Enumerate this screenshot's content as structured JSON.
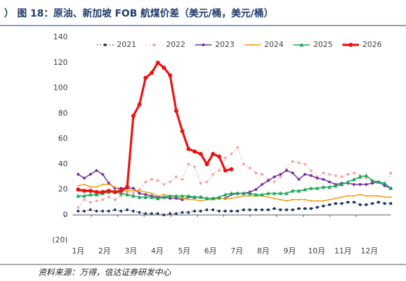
{
  "chart_data": {
    "type": "line",
    "title": "）  图 18：原油、新加坡 FOB 航煤价差（美元/桶，美元/桶）",
    "source": "资料来源：万得，信达证券研发中心",
    "x": [
      0,
      1,
      2,
      3,
      4,
      5,
      6,
      7,
      8,
      9,
      10,
      11,
      12,
      13,
      14,
      15,
      16,
      17,
      18,
      19,
      20,
      21,
      22,
      23,
      24,
      25,
      26,
      27,
      28,
      29,
      30,
      31,
      32,
      33,
      34,
      35,
      36,
      37,
      38,
      39,
      40,
      41,
      42,
      43,
      44,
      45,
      46,
      47,
      48,
      49,
      50,
      51
    ],
    "xlim": [
      0,
      51
    ],
    "xticks": [
      {
        "value": 0,
        "label": "1月"
      },
      {
        "value": 4.3,
        "label": "2月"
      },
      {
        "value": 8.6,
        "label": "3月"
      },
      {
        "value": 12.9,
        "label": "4月"
      },
      {
        "value": 17.3,
        "label": "5月"
      },
      {
        "value": 21.6,
        "label": "6月"
      },
      {
        "value": 25.9,
        "label": "7月"
      },
      {
        "value": 30.2,
        "label": "8月"
      },
      {
        "value": 34.5,
        "label": "9月"
      },
      {
        "value": 38.9,
        "label": "10月"
      },
      {
        "value": 43.2,
        "label": "11月"
      },
      {
        "value": 47.5,
        "label": "12月"
      }
    ],
    "ylim": [
      -20,
      140
    ],
    "yticks": [
      {
        "value": -20,
        "label": "(20)"
      },
      0,
      20,
      40,
      60,
      80,
      100,
      120,
      140
    ],
    "grid": false,
    "legend": "top",
    "series": [
      {
        "name": "2021",
        "color": "#1f3864",
        "line_style": "dotted",
        "marker": "circle",
        "values": [
          3,
          3,
          4,
          3,
          3,
          3,
          4,
          3,
          4,
          3,
          2,
          1,
          1,
          1,
          0,
          1,
          1,
          2,
          2,
          3,
          3,
          4,
          4,
          3,
          3,
          3,
          3,
          4,
          4,
          4,
          4,
          4,
          5,
          4,
          4,
          4,
          5,
          5,
          5,
          6,
          7,
          8,
          9,
          9,
          10,
          10,
          8,
          8,
          9,
          10,
          9,
          9
        ]
      },
      {
        "name": "2022",
        "color": "#f4a6a6",
        "line_style": "dotted",
        "marker": "circle",
        "values": [
          6,
          12,
          10,
          11,
          12,
          14,
          12,
          15,
          18,
          17,
          20,
          26,
          28,
          27,
          24,
          26,
          30,
          28,
          40,
          38,
          25,
          26,
          32,
          35,
          45,
          48,
          53,
          40,
          37,
          33,
          32,
          28,
          26,
          30,
          36,
          42,
          41,
          40,
          35,
          30,
          33,
          32,
          31,
          30,
          32,
          33,
          31,
          29,
          27,
          26,
          25,
          33
        ]
      },
      {
        "name": "2023",
        "color": "#7030a0",
        "line_style": "solid",
        "marker": "circle",
        "values": [
          32,
          29,
          32,
          35,
          32,
          25,
          21,
          21,
          21,
          21,
          17,
          16,
          15,
          14,
          14,
          13,
          13,
          12,
          14,
          14,
          14,
          13,
          13,
          13,
          13,
          16,
          17,
          17,
          18,
          20,
          24,
          27,
          30,
          32,
          35,
          33,
          28,
          32,
          31,
          29,
          28,
          26,
          24,
          25,
          25,
          24,
          24,
          24,
          25,
          26,
          23,
          21
        ]
      },
      {
        "name": "2024",
        "color": "#f39c12",
        "line_style": "solid",
        "marker": "dot",
        "values": [
          23,
          24,
          22,
          22,
          24,
          24,
          22,
          19,
          19,
          19,
          19,
          18,
          17,
          15,
          16,
          15,
          14,
          13,
          12,
          12,
          11,
          12,
          12,
          13,
          13,
          13,
          14,
          15,
          15,
          15,
          15,
          14,
          13,
          12,
          11,
          12,
          12,
          12,
          11,
          11,
          11,
          12,
          13,
          14,
          15,
          15,
          16,
          15,
          15,
          15,
          14,
          14
        ]
      },
      {
        "name": "2025",
        "color": "#1aaa55",
        "line_style": "solid",
        "marker": "triangle",
        "values": [
          15,
          15,
          16,
          16,
          17,
          18,
          18,
          17,
          16,
          15,
          14,
          14,
          14,
          13,
          14,
          15,
          15,
          15,
          15,
          14,
          14,
          13,
          13,
          14,
          16,
          17,
          17,
          17,
          17,
          16,
          16,
          17,
          17,
          17,
          17,
          19,
          19,
          20,
          21,
          21,
          22,
          22,
          23,
          24,
          26,
          28,
          30,
          31,
          27,
          26,
          25,
          21
        ]
      },
      {
        "name": "2026",
        "color": "#ee1111",
        "line_style": "bold",
        "marker": "circle",
        "values": [
          20,
          19,
          19,
          18,
          18,
          19,
          18,
          19,
          22,
          78,
          87,
          108,
          112,
          120,
          116,
          110,
          82,
          66,
          52,
          50,
          48,
          40,
          48,
          46,
          35,
          36,
          null,
          null,
          null,
          null,
          null,
          null,
          null,
          null,
          null,
          null,
          null,
          null,
          null,
          null,
          null,
          null,
          null,
          null,
          null,
          null,
          null,
          null,
          null,
          null,
          null,
          null
        ]
      }
    ]
  }
}
